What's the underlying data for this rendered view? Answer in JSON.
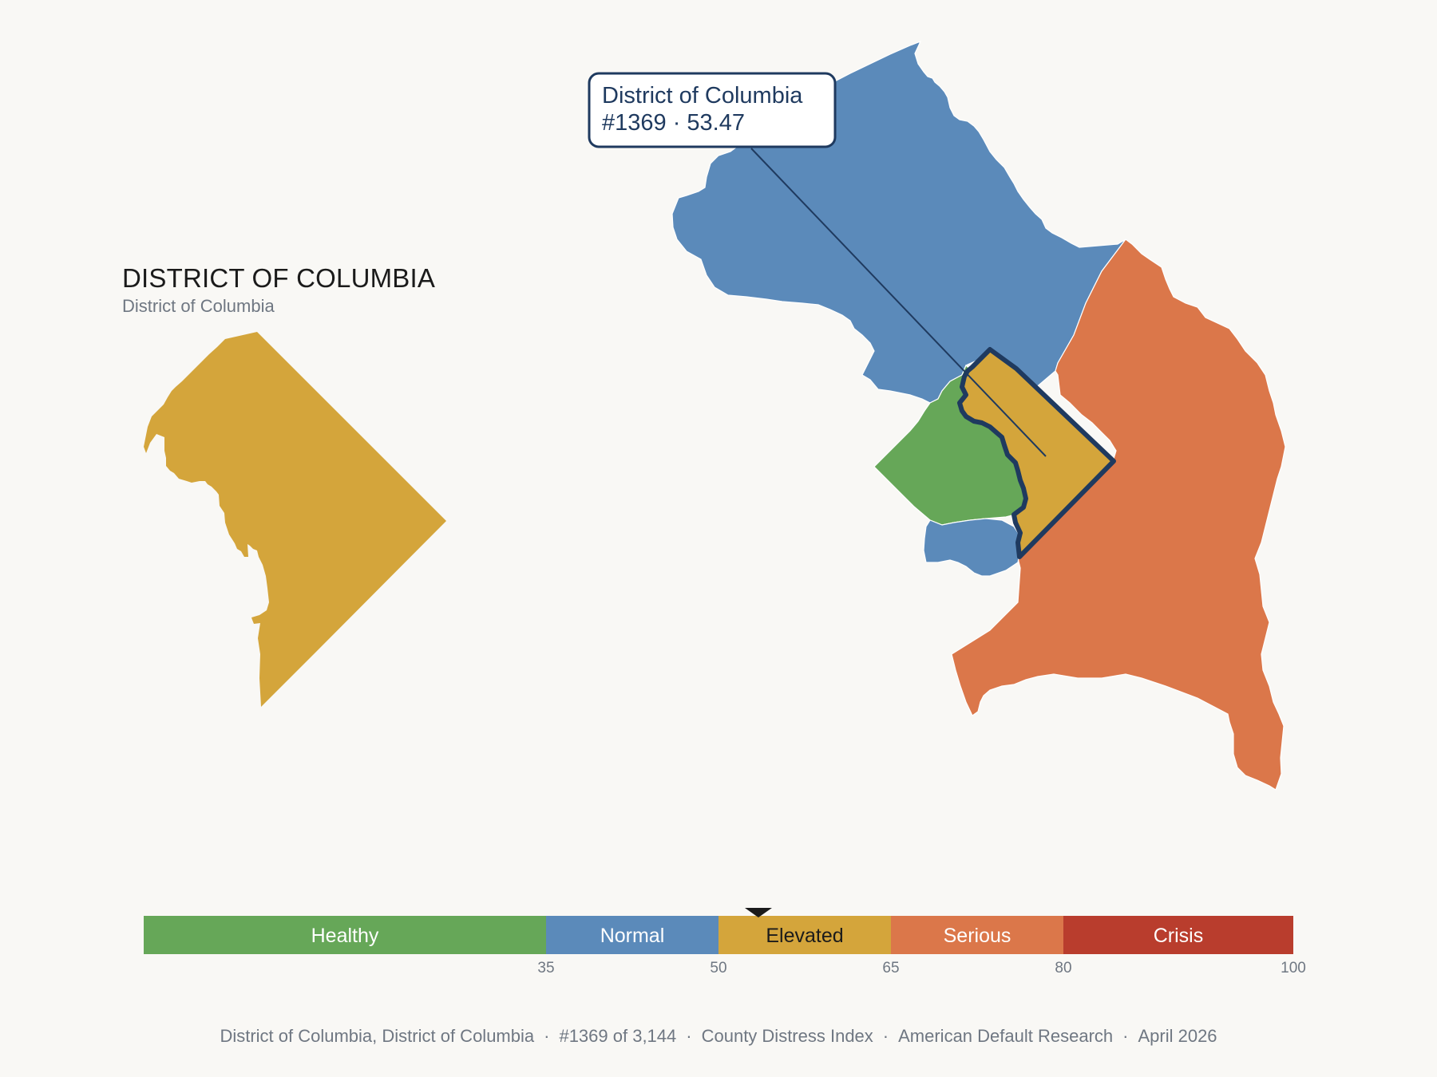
{
  "header": {
    "title": "DISTRICT OF COLUMBIA",
    "subtitle": "District of Columbia"
  },
  "callout": {
    "name": "District of Columbia",
    "rank_score": "#1369 · 53.47"
  },
  "map": {
    "highlight_outline_color": "#1f3a5f",
    "regions": [
      {
        "name": "district-of-columbia",
        "category": "Elevated",
        "color": "#d4a53b"
      },
      {
        "name": "montgomery-region",
        "category": "Normal",
        "color": "#5b8aba"
      },
      {
        "name": "prince-georges-region",
        "category": "Serious",
        "color": "#db774a"
      },
      {
        "name": "arlington-region",
        "category": "Healthy",
        "color": "#66a758"
      },
      {
        "name": "alexandria-region",
        "category": "Normal",
        "color": "#5b8aba"
      }
    ]
  },
  "legend": {
    "min": 0,
    "max": 100,
    "marker_value": 53.47,
    "segments": [
      {
        "label": "Healthy",
        "from": 0,
        "to": 35,
        "color": "#66a758",
        "text_color": "#ffffff"
      },
      {
        "label": "Normal",
        "from": 35,
        "to": 50,
        "color": "#5b8aba",
        "text_color": "#ffffff"
      },
      {
        "label": "Elevated",
        "from": 50,
        "to": 65,
        "color": "#d4a53b",
        "text_color": "#1b1b1b"
      },
      {
        "label": "Serious",
        "from": 65,
        "to": 80,
        "color": "#db774a",
        "text_color": "#ffffff"
      },
      {
        "label": "Crisis",
        "from": 80,
        "to": 100,
        "color": "#b93d2d",
        "text_color": "#ffffff"
      }
    ],
    "ticks": [
      "35",
      "50",
      "65",
      "80",
      "100"
    ]
  },
  "footer": {
    "items": [
      "District of Columbia, District of Columbia",
      "#1369 of 3,144",
      "County Distress Index",
      "American Default Research",
      "April 2026"
    ],
    "separator": "·"
  }
}
